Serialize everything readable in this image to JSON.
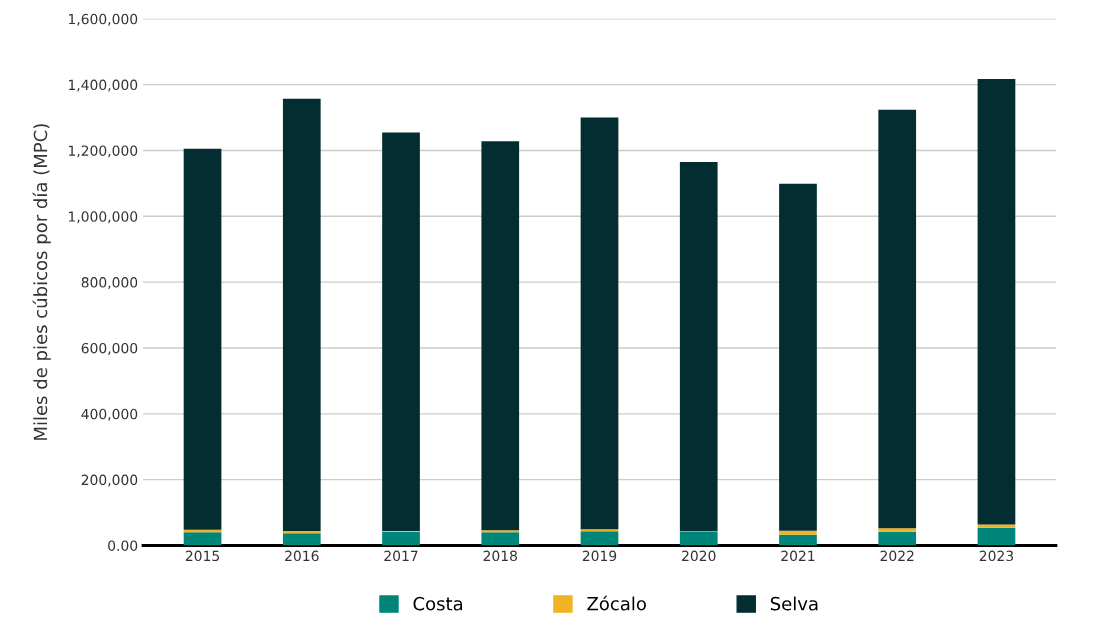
{
  "chart_data": {
    "type": "bar",
    "stacked": true,
    "ylabel": "Miles de pies cúbicos por día (MPC)",
    "categories": [
      "2015",
      "2016",
      "2017",
      "2018",
      "2019",
      "2020",
      "2021",
      "2022",
      "2023"
    ],
    "series": [
      {
        "name": "Costa",
        "color": "#00857a",
        "values": [
          40000,
          37000,
          42000,
          40000,
          43000,
          41000,
          33000,
          42000,
          54000
        ]
      },
      {
        "name": "Zócalo",
        "color": "#f0b323",
        "values": [
          8000,
          7000,
          2000,
          6000,
          6000,
          2000,
          12000,
          10000,
          10000
        ]
      },
      {
        "name": "Selva",
        "color": "#032d30",
        "values": [
          1157000,
          1313000,
          1211000,
          1182000,
          1251000,
          1122000,
          1054000,
          1272000,
          1353000
        ]
      }
    ],
    "ylim": [
      0,
      1600000
    ],
    "yticks": [
      {
        "value": 0,
        "label": "0.00"
      },
      {
        "value": 200000,
        "label": "200,000"
      },
      {
        "value": 400000,
        "label": "400,000"
      },
      {
        "value": 600000,
        "label": "600,000"
      },
      {
        "value": 800000,
        "label": "800,000"
      },
      {
        "value": 1000000,
        "label": "1,000,000"
      },
      {
        "value": 1200000,
        "label": "1,200,000"
      },
      {
        "value": 1400000,
        "label": "1,400,000"
      },
      {
        "value": 1600000,
        "label": "1,600,000"
      }
    ],
    "grid": "y",
    "legend": "bottom"
  }
}
